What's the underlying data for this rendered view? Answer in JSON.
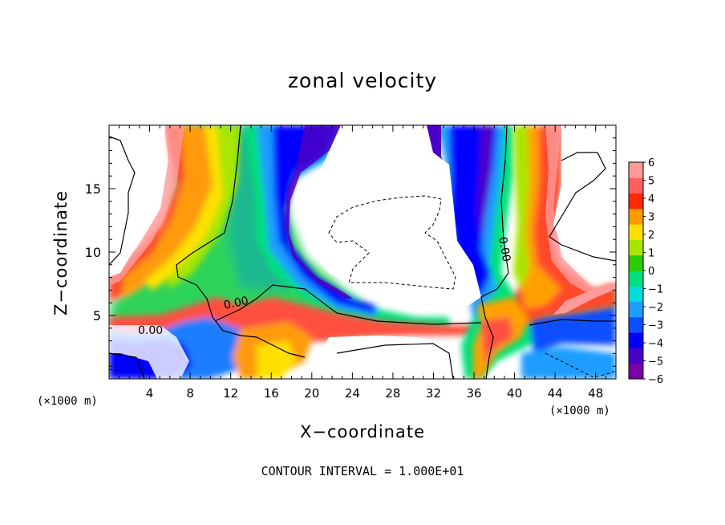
{
  "chart_data": {
    "type": "heatmap",
    "title": "zonal velocity",
    "xlabel": "X−coordinate",
    "ylabel": "Z−coordinate",
    "x_unit_label": "(×1000 m)",
    "z_unit_label": "(×1000 m)",
    "footer": "CONTOUR INTERVAL = 1.000E+01",
    "xlim": [
      0,
      50
    ],
    "ylim": [
      0,
      20
    ],
    "x_ticks": [
      "4",
      "8",
      "12",
      "16",
      "20",
      "24",
      "28",
      "32",
      "36",
      "40",
      "44",
      "48"
    ],
    "y_ticks": [
      "5",
      "10",
      "15"
    ],
    "contour_labels": [
      "0.00",
      "0.00",
      "0.00"
    ],
    "colorbar": {
      "min": -6,
      "max": 6,
      "tick_labels": [
        "6",
        "5",
        "4",
        "3",
        "2",
        "1",
        "0",
        "−1",
        "−2",
        "−3",
        "−4",
        "−5",
        "−6"
      ],
      "colors": [
        "#7a00a8",
        "#4b00c8",
        "#0000ff",
        "#0a50ff",
        "#1f9dff",
        "#00dcdc",
        "#00e07a",
        "#2ccb00",
        "#a8e600",
        "#ffe000",
        "#ff9a00",
        "#ff2a00",
        "#ff5f5f",
        "#ff9a9a"
      ]
    },
    "regions": [
      {
        "name": "upper-white-gap",
        "value": 0,
        "x": [
          20,
          36
        ],
        "z": [
          7,
          20
        ]
      },
      {
        "name": "blue-core-left",
        "value": -4,
        "x": [
          14,
          22
        ],
        "z": [
          8,
          20
        ]
      },
      {
        "name": "red-plume-left",
        "value": 5,
        "x": [
          4,
          10
        ],
        "z": [
          8,
          20
        ]
      },
      {
        "name": "blue-plume-right",
        "value": -5,
        "x": [
          34,
          40
        ],
        "z": [
          8,
          20
        ]
      },
      {
        "name": "red-plume-right",
        "value": 5,
        "x": [
          40,
          45
        ],
        "z": [
          8,
          20
        ]
      }
    ]
  }
}
